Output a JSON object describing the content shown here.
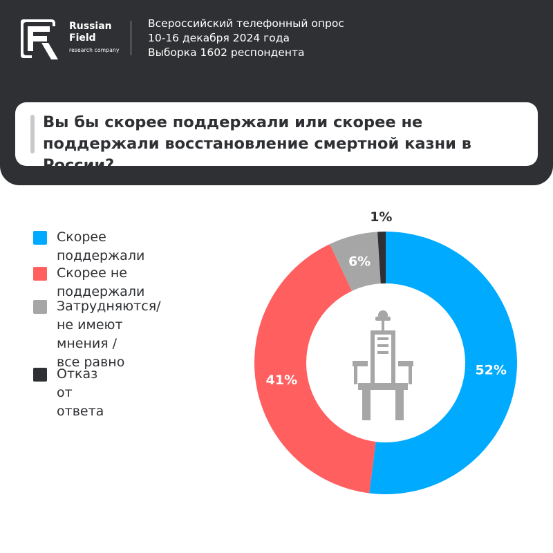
{
  "brand": {
    "name_line1": "Russian",
    "name_line2": "Field",
    "tagline": "research company"
  },
  "survey": {
    "line1": "Всероссийский телефонный опрос",
    "line2": "10-16 декабря 2024 года",
    "line3": "Выборка 1602 респондента"
  },
  "question": "Вы бы скорее поддержали или скорее не поддержали восстановление смертной казни в России?",
  "colors": {
    "header_bg": "#2e3033",
    "support": "#00aaff",
    "oppose": "#ff5f5f",
    "undecided": "#a6a6a6",
    "refused": "#2e3033"
  },
  "legend": [
    {
      "label": "Скорее поддержали",
      "color": "#00aaff"
    },
    {
      "label": "Скорее не поддержали",
      "color": "#ff5f5f"
    },
    {
      "label": "Затрудняются/\nне имеют мнения /\nвсе равно",
      "color": "#a6a6a6"
    },
    {
      "label": "Отказ от ответа",
      "color": "#2e3033"
    }
  ],
  "chart_data": {
    "type": "pie",
    "categories": [
      "Скорее поддержали",
      "Скорее не поддержали",
      "Затрудняются/ не имеют мнения / все равно",
      "Отказ от ответа"
    ],
    "values": [
      52,
      41,
      6,
      1
    ],
    "labels": [
      "52%",
      "41%",
      "6%",
      "1%"
    ],
    "colors": [
      "#00aaff",
      "#ff5f5f",
      "#a6a6a6",
      "#2e3033"
    ],
    "donut": true,
    "center_icon": "electric-chair-icon"
  }
}
